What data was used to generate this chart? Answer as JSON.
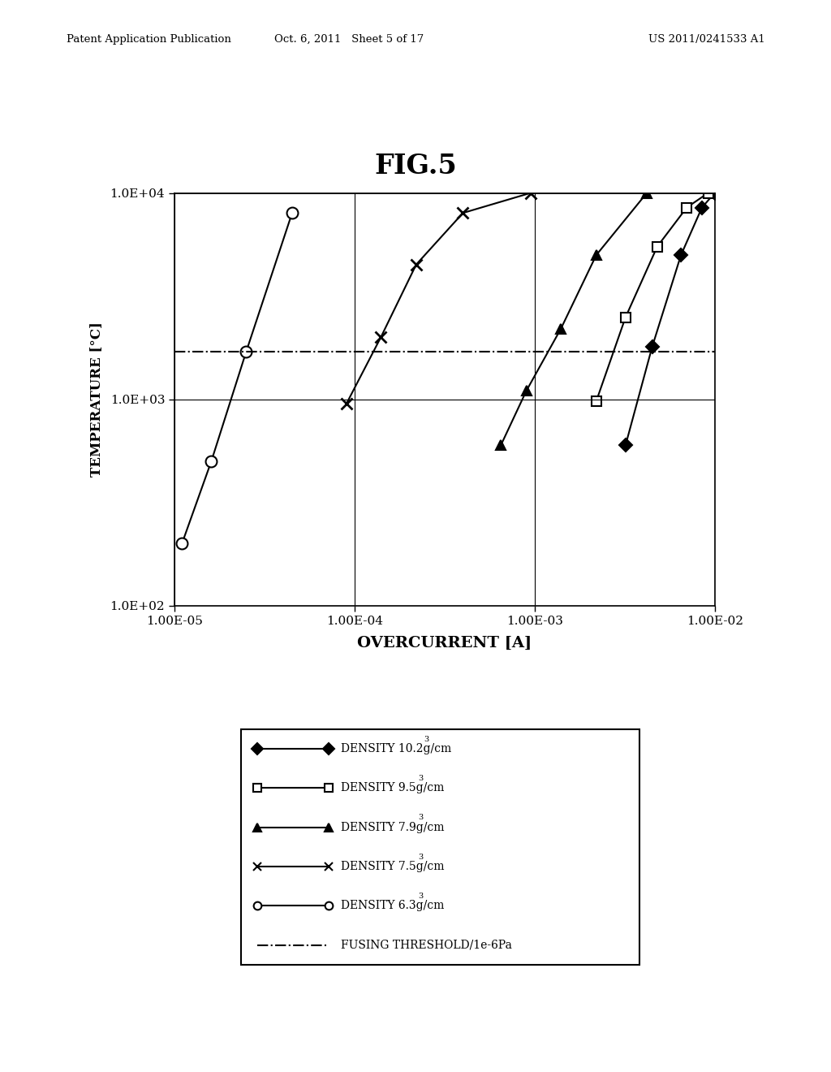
{
  "title": "FIG.5",
  "xlabel": "OVERCURRENT [A]",
  "ylabel": "TEMPERATURE [°C]",
  "fusing_threshold": 1700,
  "header_left": "Patent Application Publication",
  "header_mid": "Oct. 6, 2011   Sheet 5 of 17",
  "header_right": "US 2011/0241533 A1",
  "series": [
    {
      "label": "DENSITY 10.2g/cm",
      "marker": "D",
      "fillstyle": "full",
      "x": [
        0.0032,
        0.0045,
        0.0065,
        0.0085,
        0.01
      ],
      "y": [
        600,
        1800,
        5000,
        8500,
        10000
      ]
    },
    {
      "label": "DENSITY 9.5g/cm",
      "marker": "s",
      "fillstyle": "none",
      "x": [
        0.0022,
        0.0032,
        0.0048,
        0.007,
        0.0092
      ],
      "y": [
        980,
        2500,
        5500,
        8500,
        10000
      ]
    },
    {
      "label": "DENSITY 7.9g/cm",
      "marker": "^",
      "fillstyle": "full",
      "x": [
        0.00065,
        0.0009,
        0.0014,
        0.0022,
        0.0042
      ],
      "y": [
        600,
        1100,
        2200,
        5000,
        10000
      ]
    },
    {
      "label": "DENSITY 7.5g/cm",
      "marker": "x",
      "fillstyle": "full",
      "x": [
        9e-05,
        0.00014,
        0.00022,
        0.0004,
        0.00095
      ],
      "y": [
        950,
        2000,
        4500,
        8000,
        10000
      ]
    },
    {
      "label": "DENSITY 6.3g/cm",
      "marker": "o",
      "fillstyle": "none",
      "x": [
        1.1e-05,
        1.6e-05,
        2.5e-05,
        4.5e-05
      ],
      "y": [
        200,
        500,
        1700,
        8000
      ]
    }
  ],
  "xtick_labels": [
    "1.00E-05",
    "1.00E-04",
    "1.00E-03",
    "1.00E-02"
  ],
  "ytick_labels": [
    "1.0E+02",
    "1.0E+03",
    "1.0E+04"
  ],
  "background_color": "#ffffff",
  "text_color": "#000000"
}
